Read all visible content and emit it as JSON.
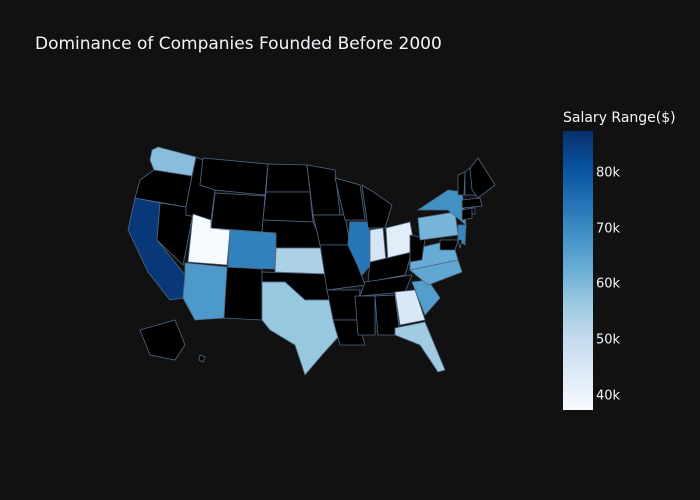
{
  "chart_data": {
    "type": "choropleth",
    "title": "Dominance of Companies Founded Before 2000",
    "colorbar": {
      "title": "Salary Range($)",
      "range": [
        37500,
        87500
      ],
      "ticks": [
        "40k",
        "50k",
        "60k",
        "70k",
        "80k"
      ],
      "tick_values": [
        40000,
        50000,
        60000,
        70000,
        80000
      ],
      "colorscale": [
        "#f7fbff",
        "#deebf7",
        "#c6dbef",
        "#9ecae1",
        "#6baed6",
        "#4292c6",
        "#2171b5",
        "#08519c",
        "#08306b"
      ]
    },
    "no_data_color": "#000000",
    "border_color": "#506784",
    "states": [
      {
        "code": "CA",
        "value": 86000
      },
      {
        "code": "IL",
        "value": 74000
      },
      {
        "code": "CO",
        "value": 72000
      },
      {
        "code": "NJ",
        "value": 71000
      },
      {
        "code": "NY",
        "value": 69000
      },
      {
        "code": "AZ",
        "value": 67000
      },
      {
        "code": "SC",
        "value": 66000
      },
      {
        "code": "NC",
        "value": 64000
      },
      {
        "code": "VA",
        "value": 63000
      },
      {
        "code": "PA",
        "value": 61000
      },
      {
        "code": "WA",
        "value": 59000
      },
      {
        "code": "TX",
        "value": 57000
      },
      {
        "code": "FL",
        "value": 56000
      },
      {
        "code": "KS",
        "value": 54000
      },
      {
        "code": "IN",
        "value": 46000
      },
      {
        "code": "GA",
        "value": 45000
      },
      {
        "code": "OH",
        "value": 43000
      },
      {
        "code": "UT",
        "value": 38000
      }
    ]
  }
}
